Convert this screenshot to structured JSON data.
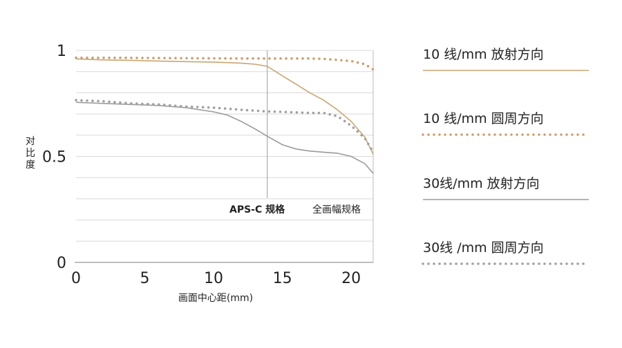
{
  "chart_data": {
    "type": "line",
    "xlabel": "画面中心距(mm)",
    "ylabel": "对比度",
    "xlim": [
      0,
      21.6
    ],
    "ylim": [
      0,
      1
    ],
    "x_ticks": [
      "0",
      "5",
      "10",
      "15",
      "20"
    ],
    "y_ticks": [
      "0",
      "0.5",
      "1"
    ],
    "grid": true,
    "legend_position": "right",
    "marker_line": {
      "x": 13.9,
      "label": "APS-C 规格"
    },
    "fullframe_label": "全画幅规格",
    "series": [
      {
        "name": "10 线/mm 放射方向",
        "color": "#c9a472",
        "style": "solid",
        "points": [
          [
            0,
            0.96
          ],
          [
            2,
            0.955
          ],
          [
            4,
            0.953
          ],
          [
            6,
            0.95
          ],
          [
            8,
            0.947
          ],
          [
            10,
            0.945
          ],
          [
            12,
            0.94
          ],
          [
            13,
            0.935
          ],
          [
            13.9,
            0.925
          ],
          [
            15,
            0.88
          ],
          [
            16,
            0.84
          ],
          [
            17,
            0.8
          ],
          [
            18,
            0.765
          ],
          [
            19,
            0.72
          ],
          [
            20,
            0.665
          ],
          [
            21,
            0.59
          ],
          [
            21.6,
            0.51
          ]
        ]
      },
      {
        "name": "10 线/mm 圆周方向",
        "color": "#c8a070",
        "style": "dotted",
        "points": [
          [
            0,
            0.965
          ],
          [
            3,
            0.965
          ],
          [
            6,
            0.964
          ],
          [
            9,
            0.963
          ],
          [
            12,
            0.962
          ],
          [
            15,
            0.962
          ],
          [
            17,
            0.962
          ],
          [
            18,
            0.96
          ],
          [
            19,
            0.955
          ],
          [
            20,
            0.95
          ],
          [
            21,
            0.935
          ],
          [
            21.6,
            0.91
          ]
        ]
      },
      {
        "name": "30线/mm 放射方向",
        "color": "#9a9a9a",
        "style": "solid",
        "points": [
          [
            0,
            0.755
          ],
          [
            2,
            0.75
          ],
          [
            4,
            0.745
          ],
          [
            6,
            0.74
          ],
          [
            8,
            0.73
          ],
          [
            10,
            0.71
          ],
          [
            11,
            0.695
          ],
          [
            12,
            0.665
          ],
          [
            13,
            0.63
          ],
          [
            13.9,
            0.595
          ],
          [
            15,
            0.555
          ],
          [
            16,
            0.535
          ],
          [
            17,
            0.525
          ],
          [
            18,
            0.52
          ],
          [
            19,
            0.515
          ],
          [
            20,
            0.5
          ],
          [
            21,
            0.465
          ],
          [
            21.6,
            0.42
          ]
        ]
      },
      {
        "name": "30线 /mm 圆周方向",
        "color": "#a0a0a0",
        "style": "dotted",
        "points": [
          [
            0,
            0.765
          ],
          [
            2,
            0.76
          ],
          [
            4,
            0.75
          ],
          [
            6,
            0.745
          ],
          [
            8,
            0.735
          ],
          [
            10,
            0.73
          ],
          [
            12,
            0.72
          ],
          [
            13.9,
            0.712
          ],
          [
            15,
            0.71
          ],
          [
            17,
            0.705
          ],
          [
            18,
            0.705
          ],
          [
            19,
            0.69
          ],
          [
            20,
            0.645
          ],
          [
            21,
            0.585
          ],
          [
            21.6,
            0.52
          ]
        ]
      }
    ]
  }
}
